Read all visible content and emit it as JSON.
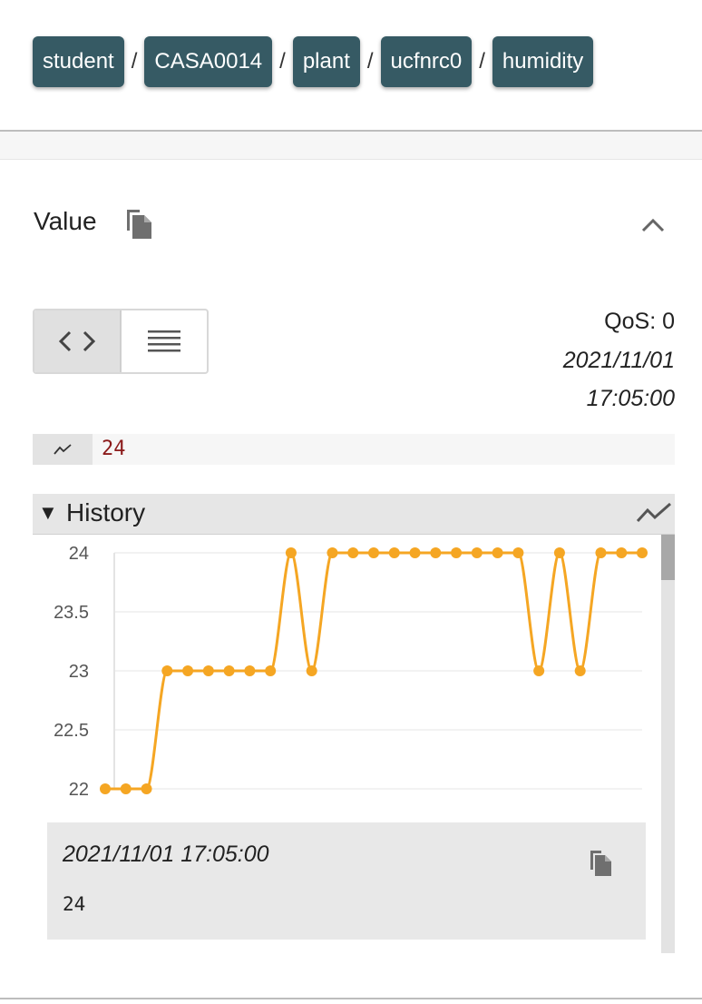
{
  "breadcrumb": [
    "student",
    "CASA0014",
    "plant",
    "ucfnrc0",
    "humidity"
  ],
  "breadcrumb_separator": "/",
  "value_section": {
    "title": "Value",
    "qos": "QoS: 0",
    "timestamp_date": "2021/11/01",
    "timestamp_time": "17:05:00",
    "current_value": "24",
    "value_color": "#8b1a1a"
  },
  "history": {
    "title": "History",
    "selected_timestamp": "2021/11/01 17:05:00",
    "selected_value": "24"
  },
  "colors": {
    "chip": "#365a64",
    "series": "#f5a623"
  },
  "chart_data": {
    "type": "line",
    "ylim": [
      22,
      24
    ],
    "y_ticks": [
      "24",
      "23.5",
      "23",
      "22.5",
      "22"
    ],
    "grid": true,
    "series": [
      {
        "values": [
          22,
          22,
          22,
          23,
          23,
          23,
          23,
          23,
          23,
          24,
          23,
          24,
          24,
          24,
          24,
          24,
          24,
          24,
          24,
          24,
          24,
          23,
          24,
          23,
          24,
          24,
          24
        ]
      }
    ]
  }
}
